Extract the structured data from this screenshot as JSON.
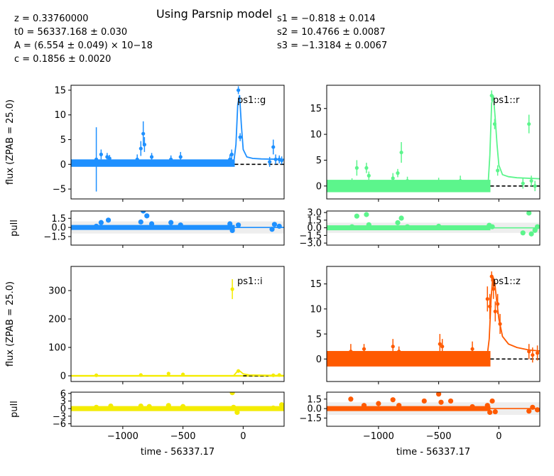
{
  "title": "Using Parsnip model",
  "params_left": [
    "z = 0.33760000",
    "t0 = 56337.168 ± 0.030",
    "A = (6.554 ± 0.049) × 10−18",
    "c = 0.1856 ± 0.0020"
  ],
  "params_right": [
    "s1 = −0.818 ± 0.014",
    "s2 = 10.4766 ± 0.0087",
    "s3 = −1.3184 ± 0.0067"
  ],
  "ylabel_flux": "flux (ZPAB = 25.0)",
  "ylabel_pull": "pull",
  "xlabel": "time - 56337.17",
  "x_ticks": [
    "−1000",
    "−500",
    "0"
  ],
  "chart_data": [
    {
      "type": "scatter",
      "band": "ps1::g",
      "color": "#1e90ff",
      "xlim": [
        -1430,
        340
      ],
      "flux": {
        "ylim": [
          -7,
          16
        ],
        "yticks": [
          -5,
          0,
          5,
          10,
          15
        ],
        "baseline": {
          "x": [
            -1430,
            -70
          ],
          "y": [
            -0.5,
            1.0
          ]
        },
        "points": [
          {
            "x": -1220,
            "y": 1.0,
            "err": 6.5
          },
          {
            "x": -1180,
            "y": 2.0,
            "err": 1.0
          },
          {
            "x": -1130,
            "y": 1.5,
            "err": 0.8
          },
          {
            "x": -1110,
            "y": 1.2,
            "err": 0.7
          },
          {
            "x": -880,
            "y": 1.0,
            "err": 1.0
          },
          {
            "x": -850,
            "y": 3.2,
            "err": 1.5
          },
          {
            "x": -830,
            "y": 6.2,
            "err": 2.5
          },
          {
            "x": -820,
            "y": 4.0,
            "err": 1.5
          },
          {
            "x": -760,
            "y": 1.5,
            "err": 0.8
          },
          {
            "x": -600,
            "y": 1.0,
            "err": 0.8
          },
          {
            "x": -520,
            "y": 1.5,
            "err": 1.0
          },
          {
            "x": -110,
            "y": 1.0,
            "err": 1.0
          },
          {
            "x": -95,
            "y": 2.0,
            "err": 1.0
          },
          {
            "x": -40,
            "y": 15.0,
            "err": 0.8
          },
          {
            "x": -25,
            "y": 5.5,
            "err": 0.8
          },
          {
            "x": 220,
            "y": 0.5,
            "err": 1.0
          },
          {
            "x": 250,
            "y": 3.5,
            "err": 1.5
          },
          {
            "x": 270,
            "y": 1.0,
            "err": 1.0
          },
          {
            "x": 300,
            "y": 1.0,
            "err": 0.8
          },
          {
            "x": 320,
            "y": 0.8,
            "err": 0.8
          }
        ],
        "model": {
          "x": [
            -1430,
            -80,
            -60,
            -45,
            -30,
            -15,
            0,
            30,
            80,
            150,
            340
          ],
          "y": [
            0,
            0,
            4,
            12,
            14,
            8,
            3,
            1.5,
            1.2,
            1.1,
            1.0
          ]
        },
        "zero_dashed": {
          "x": [
            -70,
            340
          ]
        }
      },
      "pull": {
        "ylim": [
          -2.9,
          2.7
        ],
        "yticks": [
          -1.5,
          0.0,
          1.5
        ],
        "ytick_labels": [
          "−1.5",
          "0.0",
          "1.5"
        ],
        "points": [
          {
            "x": -1220,
            "y": 0.2
          },
          {
            "x": -1180,
            "y": 0.8
          },
          {
            "x": -1120,
            "y": 1.2
          },
          {
            "x": -850,
            "y": 0.9
          },
          {
            "x": -830,
            "y": 2.7
          },
          {
            "x": -800,
            "y": 1.9
          },
          {
            "x": -760,
            "y": 0.6
          },
          {
            "x": -600,
            "y": 0.8
          },
          {
            "x": -520,
            "y": 0.4
          },
          {
            "x": -110,
            "y": 0.6
          },
          {
            "x": -90,
            "y": -0.5
          },
          {
            "x": -40,
            "y": 0.4
          },
          {
            "x": 240,
            "y": -0.3
          },
          {
            "x": 260,
            "y": 0.5
          },
          {
            "x": 300,
            "y": 0.2
          }
        ]
      }
    },
    {
      "type": "scatter",
      "band": "ps1::r",
      "color": "#5cf58c",
      "xlim": [
        -1430,
        340
      ],
      "flux": {
        "ylim": [
          -2.5,
          19.5
        ],
        "yticks": [
          0,
          5,
          10,
          15
        ],
        "baseline": {
          "x": [
            -1430,
            -70
          ],
          "y": [
            -1.2,
            1.2
          ]
        },
        "points": [
          {
            "x": -1220,
            "y": 0.5,
            "err": 1.0
          },
          {
            "x": -1180,
            "y": 3.5,
            "err": 1.5
          },
          {
            "x": -1100,
            "y": 3.5,
            "err": 1.0
          },
          {
            "x": -1080,
            "y": 2.0,
            "err": 0.8
          },
          {
            "x": -880,
            "y": 1.5,
            "err": 1.0
          },
          {
            "x": -840,
            "y": 2.5,
            "err": 0.8
          },
          {
            "x": -810,
            "y": 6.5,
            "err": 2.0
          },
          {
            "x": -760,
            "y": 1.0,
            "err": 0.8
          },
          {
            "x": -500,
            "y": 0.8,
            "err": 0.8
          },
          {
            "x": -320,
            "y": 1.0,
            "err": 1.0
          },
          {
            "x": -60,
            "y": 17.5,
            "err": 1.0
          },
          {
            "x": -35,
            "y": 12.0,
            "err": 1.0
          },
          {
            "x": -10,
            "y": 3.0,
            "err": 1.0
          },
          {
            "x": 200,
            "y": 0.5,
            "err": 1.0
          },
          {
            "x": 250,
            "y": 12.0,
            "err": 1.8
          },
          {
            "x": 270,
            "y": 1.0,
            "err": 1.0
          },
          {
            "x": 300,
            "y": 0.0,
            "err": 1.0
          }
        ],
        "model": {
          "x": [
            -1430,
            -90,
            -75,
            -60,
            -45,
            -30,
            -15,
            0,
            30,
            80,
            150,
            340
          ],
          "y": [
            0,
            0,
            6,
            16,
            17.5,
            13,
            8,
            4,
            2.2,
            1.8,
            1.6,
            1.4
          ]
        },
        "zero_dashed": {
          "x": [
            -70,
            340
          ]
        }
      },
      "pull": {
        "ylim": [
          -3.4,
          3.3
        ],
        "yticks": [
          -3.0,
          -1.5,
          0.0,
          1.5,
          3.0
        ],
        "ytick_labels": [
          "−3.0",
          "−1.5",
          "0.0",
          "1.5",
          "3.0"
        ],
        "points": [
          {
            "x": -1220,
            "y": 0.2
          },
          {
            "x": -1180,
            "y": 2.3
          },
          {
            "x": -1100,
            "y": 2.6
          },
          {
            "x": -1080,
            "y": 0.6
          },
          {
            "x": -840,
            "y": 1.0
          },
          {
            "x": -810,
            "y": 1.9
          },
          {
            "x": -760,
            "y": 0.2
          },
          {
            "x": -500,
            "y": 0.3
          },
          {
            "x": -80,
            "y": 0.5
          },
          {
            "x": -55,
            "y": 0.2
          },
          {
            "x": 200,
            "y": -1.0
          },
          {
            "x": 250,
            "y": 2.9
          },
          {
            "x": 270,
            "y": -1.2
          },
          {
            "x": 300,
            "y": -0.5
          },
          {
            "x": 320,
            "y": 0.2
          }
        ]
      }
    },
    {
      "type": "scatter",
      "band": "ps1::i",
      "color": "#f4ec00",
      "xlim": [
        -1430,
        340
      ],
      "flux": {
        "ylim": [
          -20,
          385
        ],
        "yticks": [
          0,
          100,
          200,
          300
        ],
        "baseline": {
          "x": [
            -1430,
            340
          ],
          "y": [
            -3,
            3
          ]
        },
        "points": [
          {
            "x": -1220,
            "y": 2,
            "err": 3
          },
          {
            "x": -850,
            "y": 3,
            "err": 3
          },
          {
            "x": -620,
            "y": 8,
            "err": 3
          },
          {
            "x": -500,
            "y": 5,
            "err": 3
          },
          {
            "x": -90,
            "y": 305,
            "err": 35
          },
          {
            "x": -40,
            "y": 17,
            "err": 5
          },
          {
            "x": 250,
            "y": 2,
            "err": 5
          },
          {
            "x": 300,
            "y": 3,
            "err": 4
          }
        ],
        "model": {
          "x": [
            -1430,
            -80,
            -60,
            -40,
            -20,
            0,
            50,
            340
          ],
          "y": [
            0,
            0,
            10,
            20,
            14,
            7,
            3,
            1
          ]
        },
        "zero_dashed": {
          "x": [
            0,
            210
          ]
        }
      },
      "pull": {
        "ylim": [
          -7,
          6.5
        ],
        "yticks": [
          -6,
          -3,
          0,
          3,
          6
        ],
        "ytick_labels": [
          "−6",
          "−3",
          "0",
          "3",
          "6"
        ],
        "points": [
          {
            "x": -1220,
            "y": 0.5
          },
          {
            "x": -1100,
            "y": 1.0
          },
          {
            "x": -850,
            "y": 1.0
          },
          {
            "x": -780,
            "y": 0.8
          },
          {
            "x": -620,
            "y": 1.2
          },
          {
            "x": -500,
            "y": 0.8
          },
          {
            "x": -90,
            "y": 6.3
          },
          {
            "x": -80,
            "y": 0.5
          },
          {
            "x": -50,
            "y": -1.5
          },
          {
            "x": 250,
            "y": 0.2
          },
          {
            "x": 320,
            "y": 1.5
          }
        ]
      }
    },
    {
      "type": "scatter",
      "band": "ps1::z",
      "color": "#ff5a00",
      "xlim": [
        -1430,
        340
      ],
      "flux": {
        "ylim": [
          -4.5,
          18.5
        ],
        "yticks": [
          0,
          5,
          10,
          15
        ],
        "baseline": {
          "x": [
            -1430,
            -70
          ],
          "y": [
            -1.5,
            1.6
          ]
        },
        "points": [
          {
            "x": -1230,
            "y": 1.5,
            "err": 1.5
          },
          {
            "x": -1120,
            "y": 2.0,
            "err": 1.0
          },
          {
            "x": -880,
            "y": 2.5,
            "err": 1.5
          },
          {
            "x": -830,
            "y": 1.5,
            "err": 1.0
          },
          {
            "x": -490,
            "y": 3.0,
            "err": 2.0
          },
          {
            "x": -470,
            "y": 2.5,
            "err": 1.5
          },
          {
            "x": -220,
            "y": 2.0,
            "err": 1.5
          },
          {
            "x": -95,
            "y": 12.0,
            "err": 2.5
          },
          {
            "x": -75,
            "y": 10.5,
            "err": 2.5
          },
          {
            "x": -60,
            "y": 16.5,
            "err": 1.0
          },
          {
            "x": -45,
            "y": 14.0,
            "err": 2.0
          },
          {
            "x": -30,
            "y": 9.5,
            "err": 2.0
          },
          {
            "x": -10,
            "y": 11.0,
            "err": 2.0
          },
          {
            "x": 10,
            "y": 7.0,
            "err": 2.0
          },
          {
            "x": 250,
            "y": 1.5,
            "err": 1.5
          },
          {
            "x": 280,
            "y": 0.8,
            "err": 1.5
          },
          {
            "x": 320,
            "y": 1.2,
            "err": 1.5
          }
        ],
        "model": {
          "x": [
            -1430,
            -100,
            -80,
            -65,
            -50,
            -35,
            -20,
            0,
            30,
            80,
            150,
            250,
            340
          ],
          "y": [
            0,
            0,
            4,
            12,
            16.5,
            15.5,
            12,
            8,
            4.5,
            3,
            2.3,
            1.8,
            1.6
          ]
        },
        "zero_dashed": {
          "x": [
            -70,
            340
          ]
        }
      },
      "pull": {
        "ylim": [
          -2.8,
          2.6
        ],
        "yticks": [
          -1.5,
          0.0,
          1.5
        ],
        "ytick_labels": [
          "−1.5",
          "0.0",
          "1.5"
        ],
        "points": [
          {
            "x": -1230,
            "y": 1.5
          },
          {
            "x": -1120,
            "y": 0.5
          },
          {
            "x": -1000,
            "y": 0.8
          },
          {
            "x": -880,
            "y": 1.4
          },
          {
            "x": -830,
            "y": 0.5
          },
          {
            "x": -620,
            "y": 1.2
          },
          {
            "x": -500,
            "y": 2.3
          },
          {
            "x": -480,
            "y": 1.0
          },
          {
            "x": -400,
            "y": 1.2
          },
          {
            "x": -220,
            "y": 0.3
          },
          {
            "x": -95,
            "y": 0.5
          },
          {
            "x": -75,
            "y": -0.6
          },
          {
            "x": -55,
            "y": 1.2
          },
          {
            "x": -30,
            "y": -0.5
          },
          {
            "x": 250,
            "y": -0.4
          },
          {
            "x": 280,
            "y": 0.2
          },
          {
            "x": 320,
            "y": -0.2
          }
        ]
      }
    }
  ]
}
